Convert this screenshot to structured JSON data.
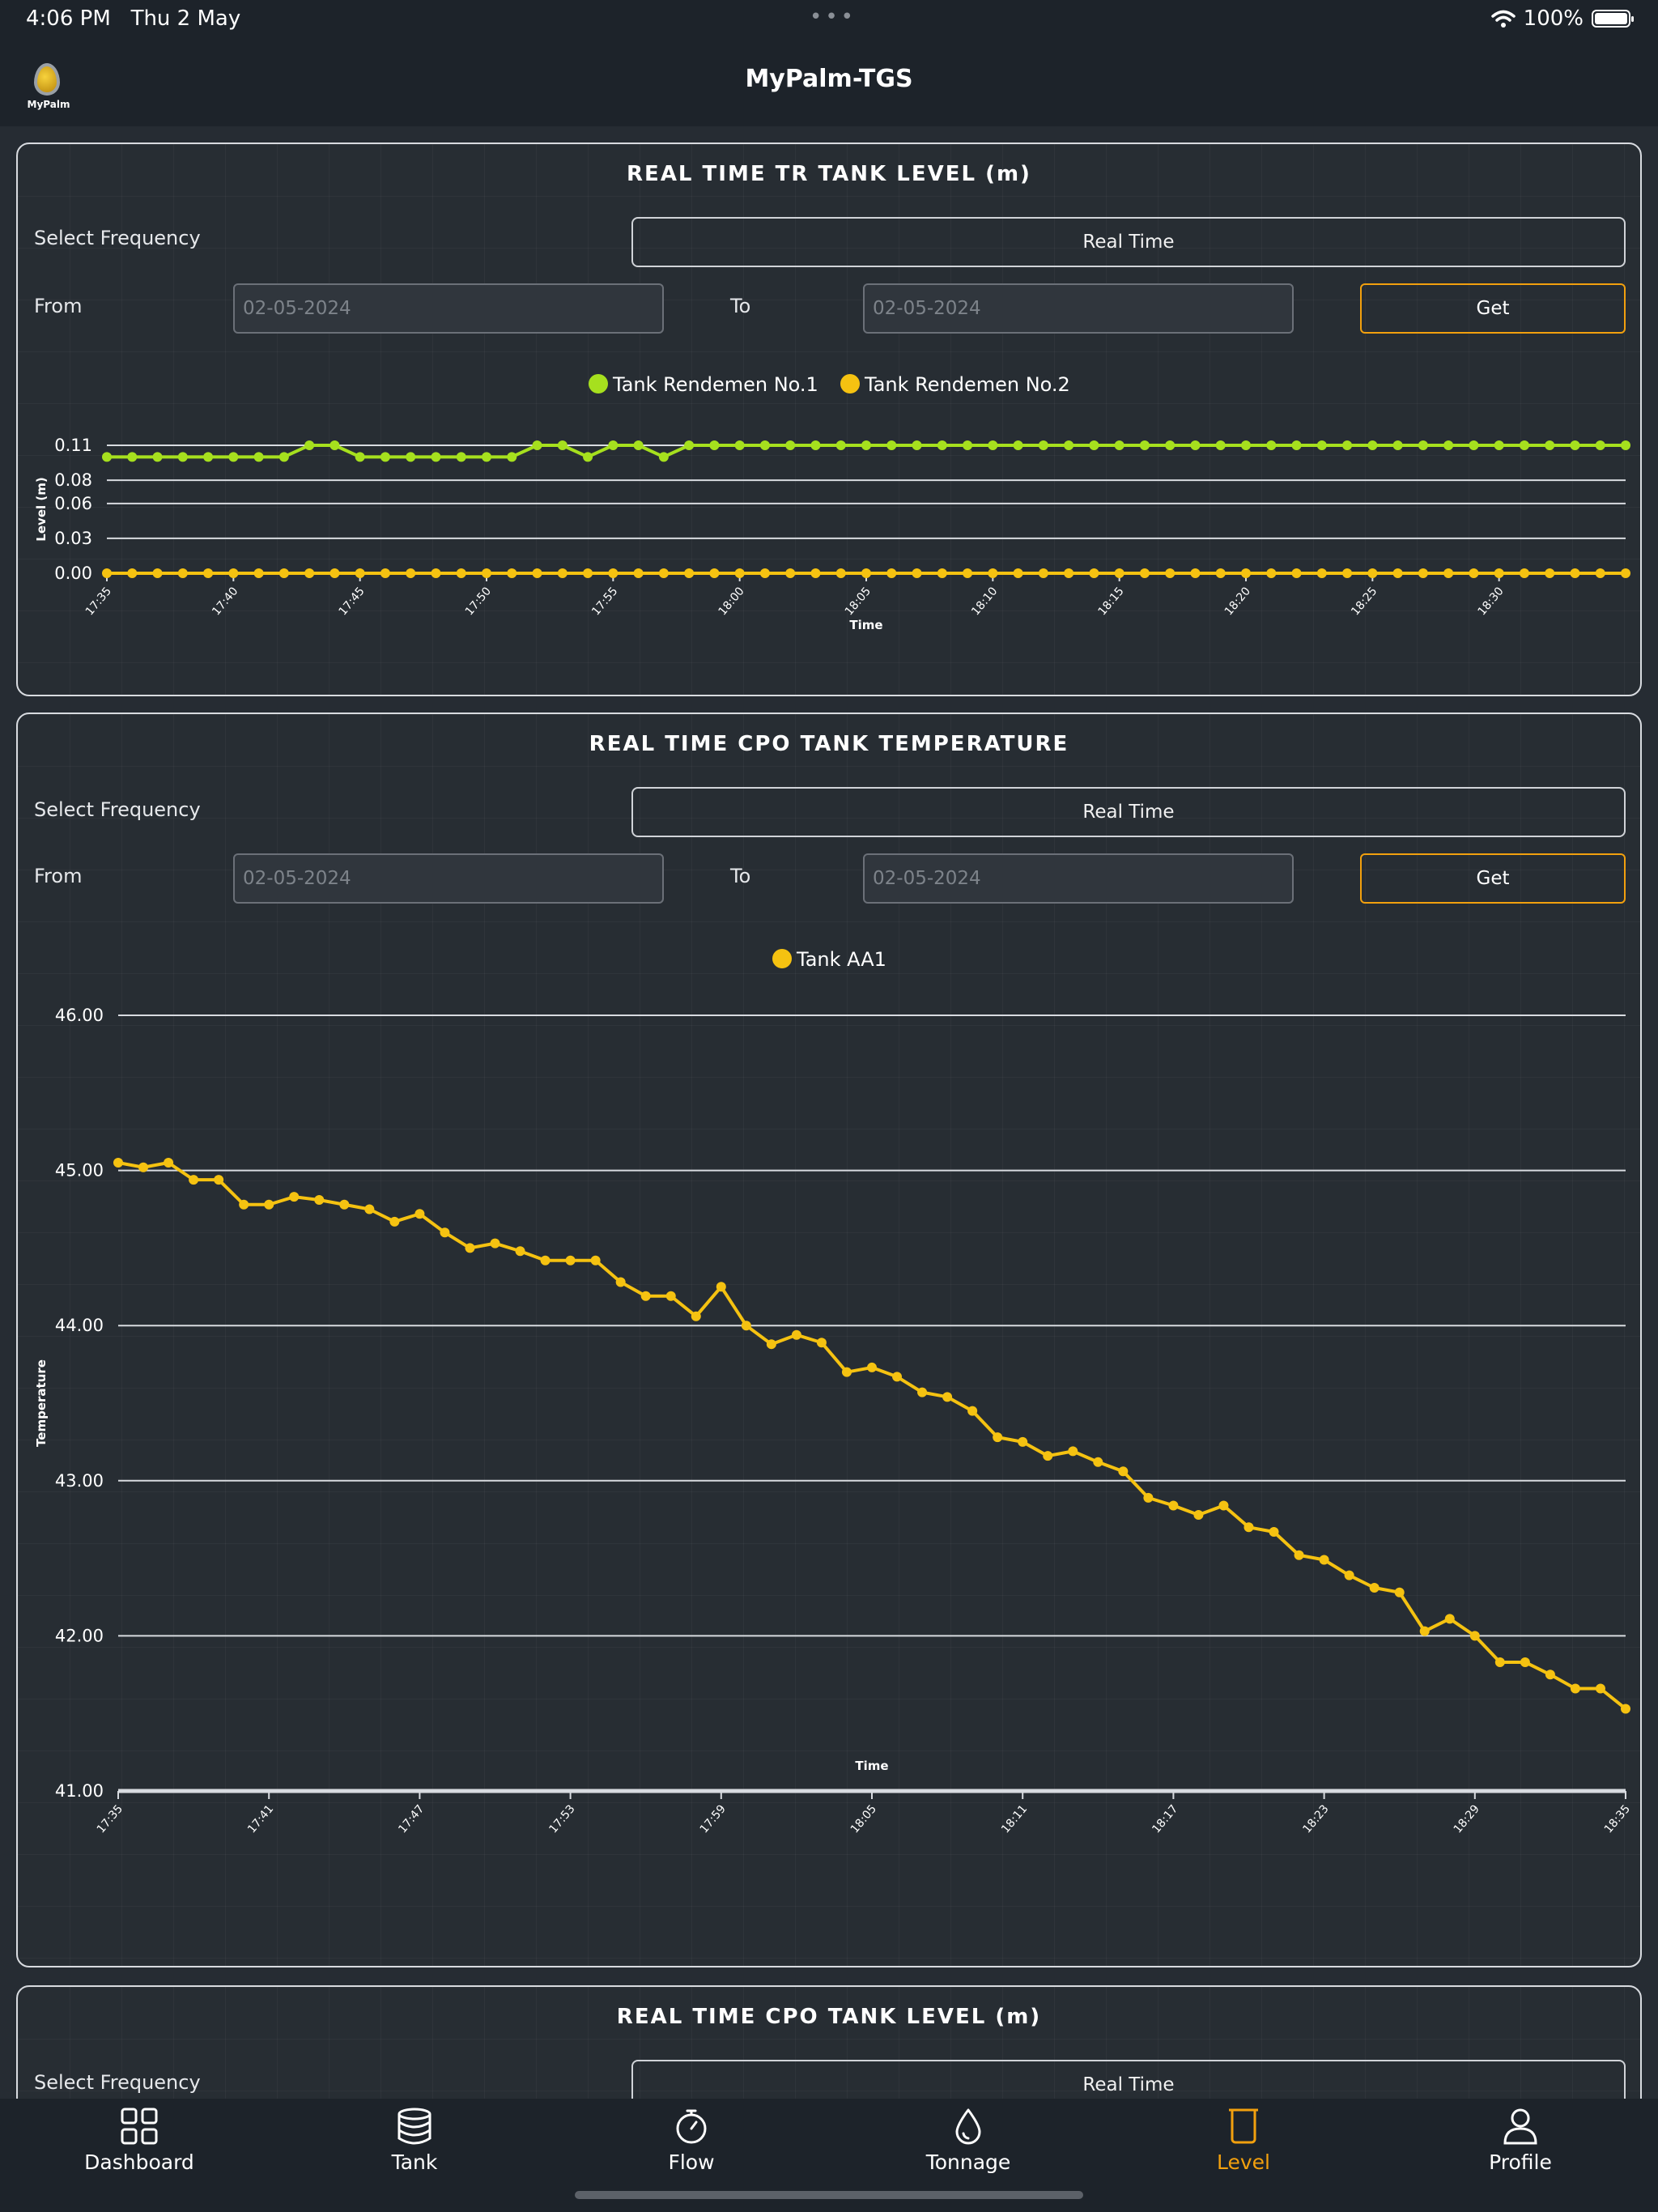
{
  "status_bar": {
    "time": "4:06 PM",
    "date": "Thu 2 May",
    "battery": "100%"
  },
  "app": {
    "title": "MyPalm-TGS",
    "logo_text": "MyPalm"
  },
  "cards": [
    {
      "title": "REAL TIME TR TANK LEVEL (m)",
      "frequency_label": "Select Frequency",
      "frequency_value": "Real Time",
      "from_label": "From",
      "from_placeholder": "02-05-2024",
      "to_label": "To",
      "to_placeholder": "02-05-2024",
      "get_label": "Get"
    },
    {
      "title": "REAL TIME CPO TANK TEMPERATURE",
      "frequency_label": "Select Frequency",
      "frequency_value": "Real Time",
      "from_label": "From",
      "from_placeholder": "02-05-2024",
      "to_label": "To",
      "to_placeholder": "02-05-2024",
      "get_label": "Get"
    },
    {
      "title": "REAL TIME CPO TANK LEVEL (m)",
      "frequency_label": "Select Frequency",
      "frequency_value": "Real Time"
    }
  ],
  "chart_data": [
    {
      "type": "line",
      "ylabel": "Level (m)",
      "xlabel": "Time",
      "y_ticks": [
        "0.11",
        "0.08",
        "0.06",
        "0.03",
        "0.00"
      ],
      "ylim": [
        0,
        0.11
      ],
      "x_ticks": [
        "17:35",
        "17:40",
        "17:45",
        "17:50",
        "17:55",
        "18:00",
        "18:05",
        "18:10",
        "18:15",
        "18:20",
        "18:25",
        "18:30"
      ],
      "x_start_minutes": 1055,
      "x_step_minutes": 1,
      "series": [
        {
          "name": "Tank Rendemen No.1",
          "color": "#a6e01e",
          "values": [
            0.1,
            0.1,
            0.1,
            0.1,
            0.1,
            0.1,
            0.1,
            0.1,
            0.11,
            0.11,
            0.1,
            0.1,
            0.1,
            0.1,
            0.1,
            0.1,
            0.1,
            0.11,
            0.11,
            0.1,
            0.11,
            0.11,
            0.1,
            0.11,
            0.11,
            0.11,
            0.11,
            0.11,
            0.11,
            0.11,
            0.11,
            0.11,
            0.11,
            0.11,
            0.11,
            0.11,
            0.11,
            0.11,
            0.11,
            0.11,
            0.11,
            0.11,
            0.11,
            0.11,
            0.11,
            0.11,
            0.11,
            0.11,
            0.11,
            0.11,
            0.11,
            0.11,
            0.11,
            0.11,
            0.11,
            0.11,
            0.11,
            0.11,
            0.11,
            0.11,
            0.11
          ]
        },
        {
          "name": "Tank Rendemen No.2",
          "color": "#f5c211",
          "values": [
            0,
            0,
            0,
            0,
            0,
            0,
            0,
            0,
            0,
            0,
            0,
            0,
            0,
            0,
            0,
            0,
            0,
            0,
            0,
            0,
            0,
            0,
            0,
            0,
            0,
            0,
            0,
            0,
            0,
            0,
            0,
            0,
            0,
            0,
            0,
            0,
            0,
            0,
            0,
            0,
            0,
            0,
            0,
            0,
            0,
            0,
            0,
            0,
            0,
            0,
            0,
            0,
            0,
            0,
            0,
            0,
            0,
            0,
            0,
            0,
            0
          ]
        }
      ]
    },
    {
      "type": "line",
      "ylabel": "Temperature",
      "xlabel": "Time",
      "y_ticks": [
        "46.00",
        "45.00",
        "44.00",
        "43.00",
        "42.00",
        "41.00"
      ],
      "ylim": [
        41,
        46
      ],
      "x_ticks": [
        "17:35",
        "17:41",
        "17:47",
        "17:53",
        "17:59",
        "18:05",
        "18:11",
        "18:17",
        "18:23",
        "18:29",
        "18:35"
      ],
      "x_start_minutes": 1055,
      "x_step_minutes": 1,
      "series": [
        {
          "name": "Tank AA1",
          "color": "#f5c211",
          "values": [
            45.05,
            45.02,
            45.05,
            44.94,
            44.94,
            44.78,
            44.78,
            44.83,
            44.81,
            44.78,
            44.75,
            44.67,
            44.72,
            44.6,
            44.5,
            44.53,
            44.48,
            44.42,
            44.42,
            44.42,
            44.28,
            44.19,
            44.19,
            44.06,
            44.25,
            44.0,
            43.88,
            43.94,
            43.89,
            43.7,
            43.73,
            43.67,
            43.57,
            43.54,
            43.45,
            43.28,
            43.25,
            43.16,
            43.19,
            43.12,
            43.06,
            42.89,
            42.84,
            42.78,
            42.84,
            42.7,
            42.67,
            42.52,
            42.49,
            42.39,
            42.31,
            42.28,
            42.03,
            42.11,
            42.0,
            41.83,
            41.83,
            41.75,
            41.66,
            41.66,
            41.53
          ]
        }
      ]
    }
  ],
  "tab_bar": {
    "items": [
      {
        "label": "Dashboard",
        "icon": "grid-icon"
      },
      {
        "label": "Tank",
        "icon": "database-icon"
      },
      {
        "label": "Flow",
        "icon": "stopwatch-icon"
      },
      {
        "label": "Tonnage",
        "icon": "drop-icon"
      },
      {
        "label": "Level",
        "icon": "beaker-icon",
        "active": true
      },
      {
        "label": "Profile",
        "icon": "person-icon"
      }
    ]
  },
  "colors": {
    "accent": "#f2a00e",
    "background": "#262c33",
    "bar": "#1d232a",
    "green": "#a6e01e",
    "yellow": "#f5c211"
  }
}
